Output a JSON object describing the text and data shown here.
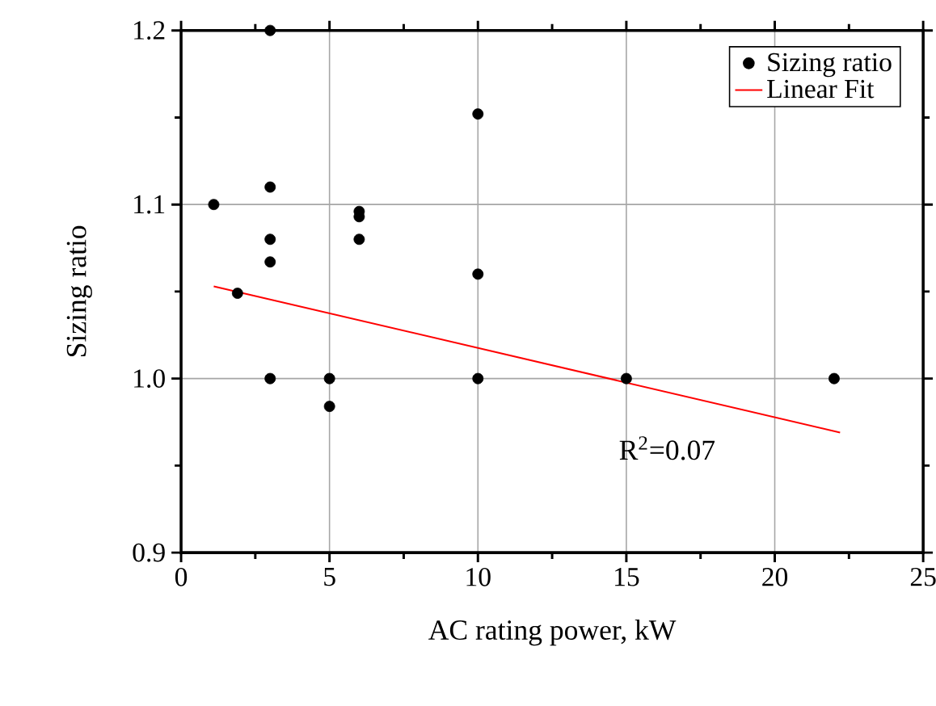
{
  "chart_data": {
    "type": "scatter",
    "xlabel": "AC rating power, kW",
    "ylabel": "Sizing ratio",
    "xlim": [
      0,
      25
    ],
    "ylim": [
      0.9,
      1.2
    ],
    "xticks": [
      0,
      5,
      10,
      15,
      20,
      25
    ],
    "yticks": [
      0.9,
      {
        "value": 1.0,
        "label": "1.0"
      },
      1.1,
      1.2
    ],
    "grid": true,
    "legend": "top right",
    "marker": "circle",
    "series": [
      {
        "name": "Sizing ratio",
        "color": "#000000",
        "x": [
          1.1,
          1.9,
          3,
          3,
          3,
          3,
          3,
          5,
          5,
          6,
          6,
          6,
          10,
          10,
          10,
          15,
          22
        ],
        "values": [
          1.1,
          1.049,
          1.2,
          1.11,
          1.08,
          1.067,
          1.0,
          1.0,
          0.984,
          1.096,
          1.093,
          1.08,
          1.152,
          1.06,
          1.0,
          1.0,
          1.0
        ]
      },
      {
        "name": "Linear Fit",
        "type": "line",
        "color": "#ff0000",
        "marker": "none",
        "x": [
          1.1,
          22.2
        ],
        "values": [
          1.053,
          0.969
        ]
      }
    ],
    "annotations": [
      "R$^{2}$=0.07"
    ]
  }
}
